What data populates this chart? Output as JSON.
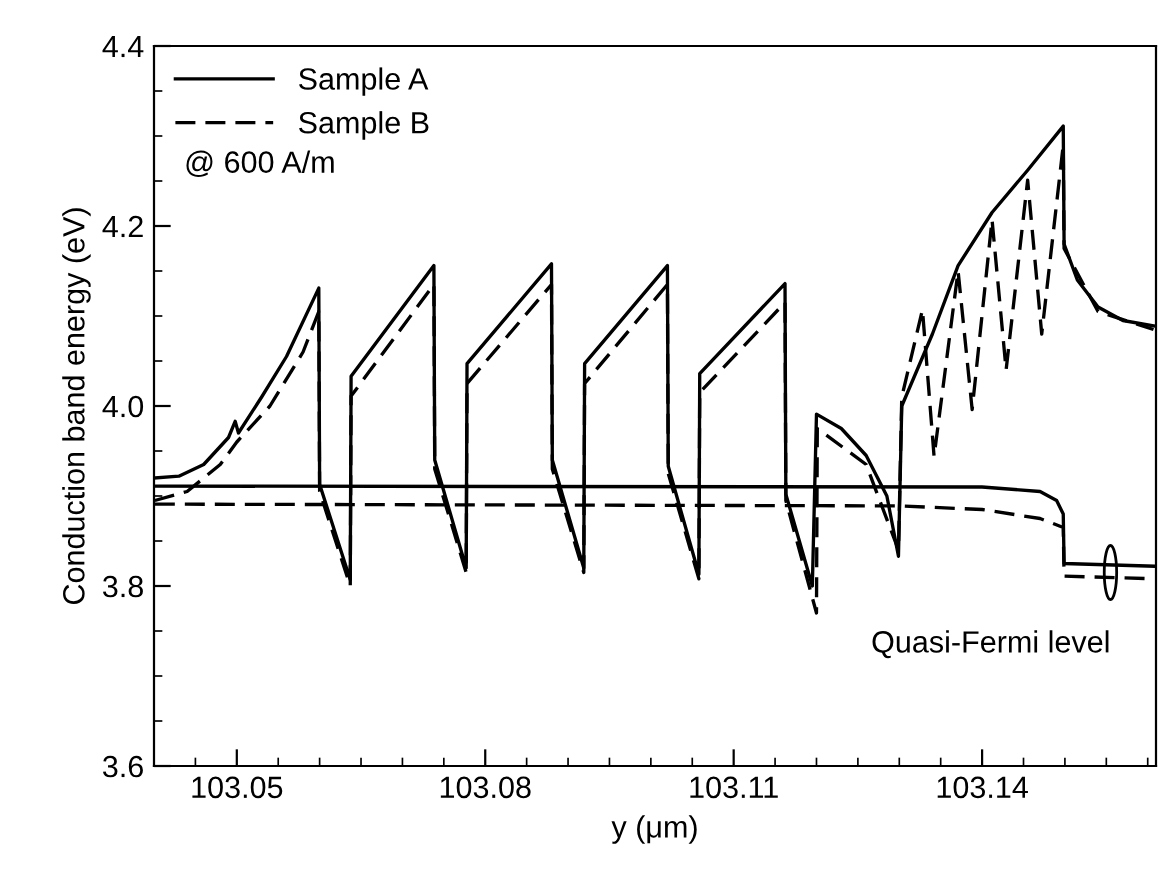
{
  "chart_data": {
    "type": "line",
    "xlabel": "y (μm)",
    "ylabel": "Conduction band energy (eV)",
    "xlim": [
      103.04,
      103.161
    ],
    "xticks": [
      103.05,
      103.08,
      103.11,
      103.14
    ],
    "ylim": [
      3.6,
      4.4
    ],
    "yticks": [
      3.6,
      3.8,
      {
        "value": 4.0,
        "label": "4.0"
      },
      4.2,
      4.4
    ],
    "grid": false,
    "legend": "top left",
    "marker": "none",
    "annotations": [
      "@ 600 A/m",
      {
        "text": "Quasi-Fermi level",
        "x": 103.1555,
        "y": 3.815
      }
    ],
    "series": [
      {
        "name": "Sample A",
        "color": "#000000",
        "line_style": "solid",
        "x": [
          103.0401,
          103.043,
          103.046,
          103.049,
          103.0498,
          103.0502,
          103.053,
          103.056,
          103.0599,
          103.06,
          103.0637,
          103.0638,
          103.0738,
          103.0739,
          103.0777,
          103.0778,
          103.088,
          103.0881,
          103.0919,
          103.092,
          103.102,
          103.1021,
          103.1058,
          103.1059,
          103.1162,
          103.1163,
          103.1195,
          103.12,
          103.123,
          103.126,
          103.1285,
          103.1299,
          103.1303,
          103.134,
          103.1371,
          103.1412,
          103.1455,
          103.1498,
          103.1499,
          103.1515,
          103.154,
          103.157,
          103.1607
        ],
        "values": [
          3.92,
          3.922,
          3.935,
          3.965,
          3.983,
          3.97,
          4.01,
          4.055,
          4.131,
          3.913,
          3.807,
          4.033,
          4.156,
          3.94,
          3.82,
          4.047,
          4.158,
          3.94,
          3.82,
          4.047,
          4.156,
          3.933,
          3.813,
          4.036,
          4.136,
          3.902,
          3.8,
          3.991,
          3.975,
          3.945,
          3.9,
          3.833,
          4.0,
          4.08,
          4.156,
          4.215,
          4.262,
          4.311,
          4.18,
          4.14,
          4.11,
          4.095,
          4.089
        ]
      },
      {
        "name": "Sample B",
        "color": "#000000",
        "line_style": "dashed",
        "x": [
          103.0401,
          103.044,
          103.048,
          103.05,
          103.054,
          103.058,
          103.0599,
          103.06,
          103.0637,
          103.0638,
          103.0738,
          103.0739,
          103.0777,
          103.0778,
          103.088,
          103.0881,
          103.0919,
          103.092,
          103.102,
          103.1021,
          103.1058,
          103.1059,
          103.1162,
          103.1163,
          103.12,
          103.1201,
          103.126,
          103.1299,
          103.1303,
          103.1328,
          103.1342,
          103.1371,
          103.1388,
          103.1412,
          103.1429,
          103.1455,
          103.1472,
          103.1498,
          103.1499,
          103.154,
          103.1607
        ],
        "values": [
          3.895,
          3.905,
          3.935,
          3.96,
          4.0,
          4.06,
          4.105,
          3.905,
          3.8,
          4.011,
          4.135,
          3.93,
          3.815,
          4.025,
          4.135,
          3.93,
          3.815,
          4.025,
          4.135,
          3.925,
          3.808,
          4.015,
          4.115,
          3.895,
          3.77,
          3.975,
          3.935,
          3.84,
          4.01,
          4.107,
          3.944,
          4.15,
          3.996,
          4.207,
          4.04,
          4.251,
          4.08,
          4.29,
          4.175,
          4.105,
          4.085
        ]
      },
      {
        "color": "#000000",
        "line_style": "solid",
        "x": [
          103.0401,
          103.14,
          103.147,
          103.149,
          103.1498,
          103.1499,
          103.1607
        ],
        "values": [
          3.911,
          3.91,
          3.905,
          3.895,
          3.88,
          3.825,
          3.822
        ]
      },
      {
        "color": "#000000",
        "line_style": "dashed",
        "x": [
          103.0401,
          103.13,
          103.14,
          103.147,
          103.1498,
          103.1499,
          103.1607
        ],
        "values": [
          3.891,
          3.889,
          3.885,
          3.875,
          3.865,
          3.811,
          3.808
        ]
      }
    ]
  }
}
